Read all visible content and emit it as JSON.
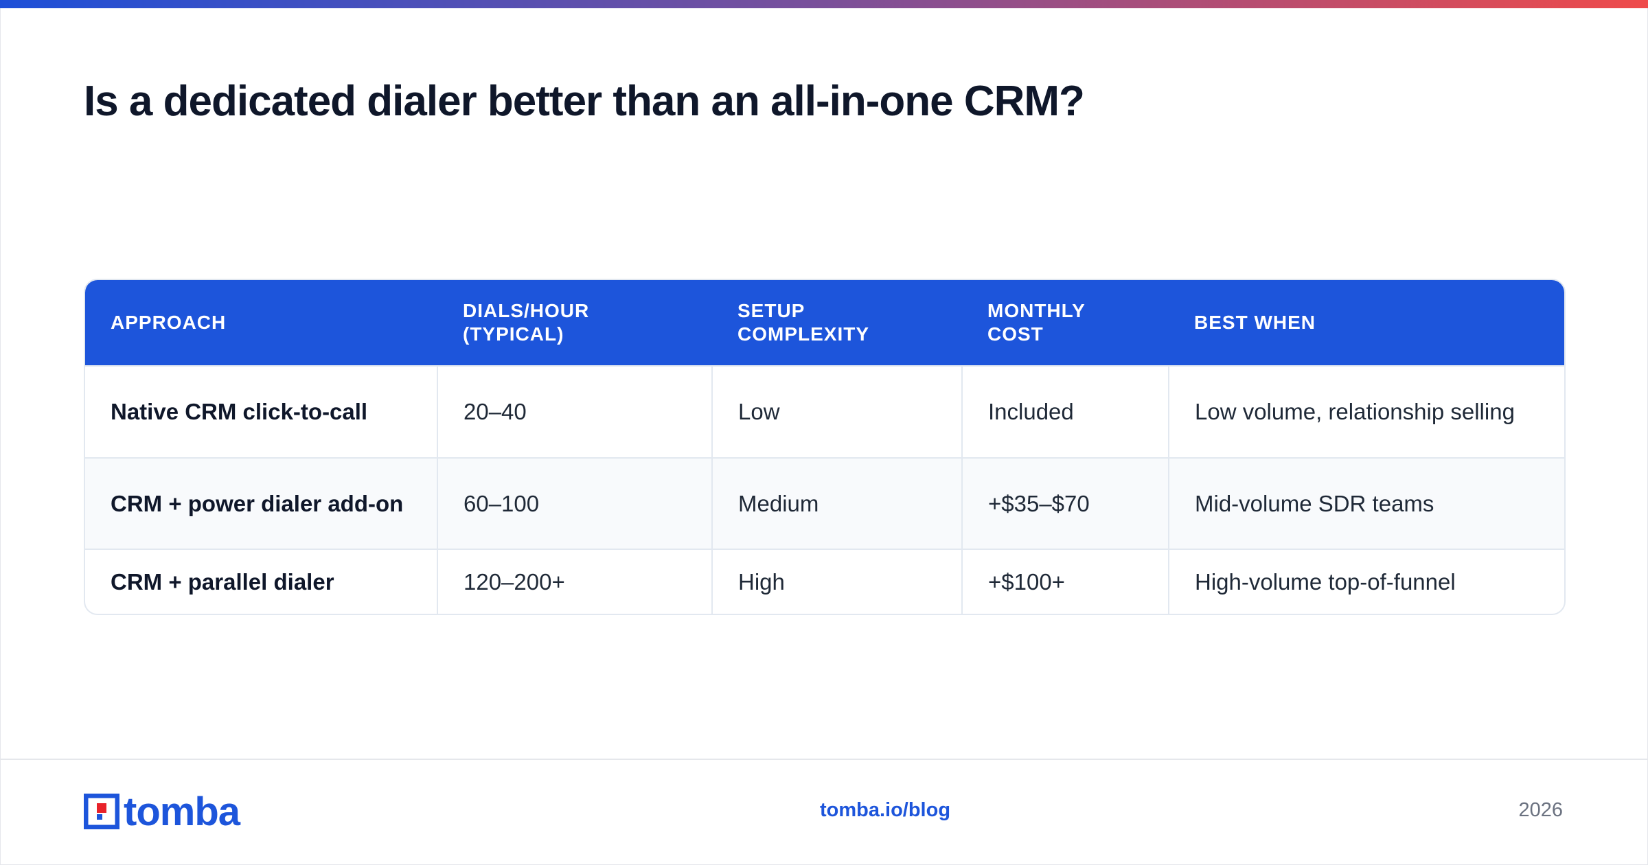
{
  "header": {
    "title": "Is a dedicated dialer better than an all-in-one CRM?"
  },
  "table": {
    "columns": [
      "APPROACH",
      "DIALS/HOUR (TYPICAL)",
      "SETUP COMPLEXITY",
      "MONTHLY COST",
      "BEST WHEN"
    ],
    "rows": [
      [
        "Native CRM click-to-call",
        "20–40",
        "Low",
        "Included",
        "Low volume, relationship selling"
      ],
      [
        "CRM + power dialer add-on",
        "60–100",
        "Medium",
        "+$35–$70",
        "Mid-volume SDR teams"
      ],
      [
        "CRM + parallel dialer",
        "120–200+",
        "High",
        "+$100+",
        "High-volume top-of-funnel"
      ]
    ]
  },
  "footer": {
    "logo": "tomba",
    "link": "tomba.io/blog",
    "year": "2026"
  }
}
